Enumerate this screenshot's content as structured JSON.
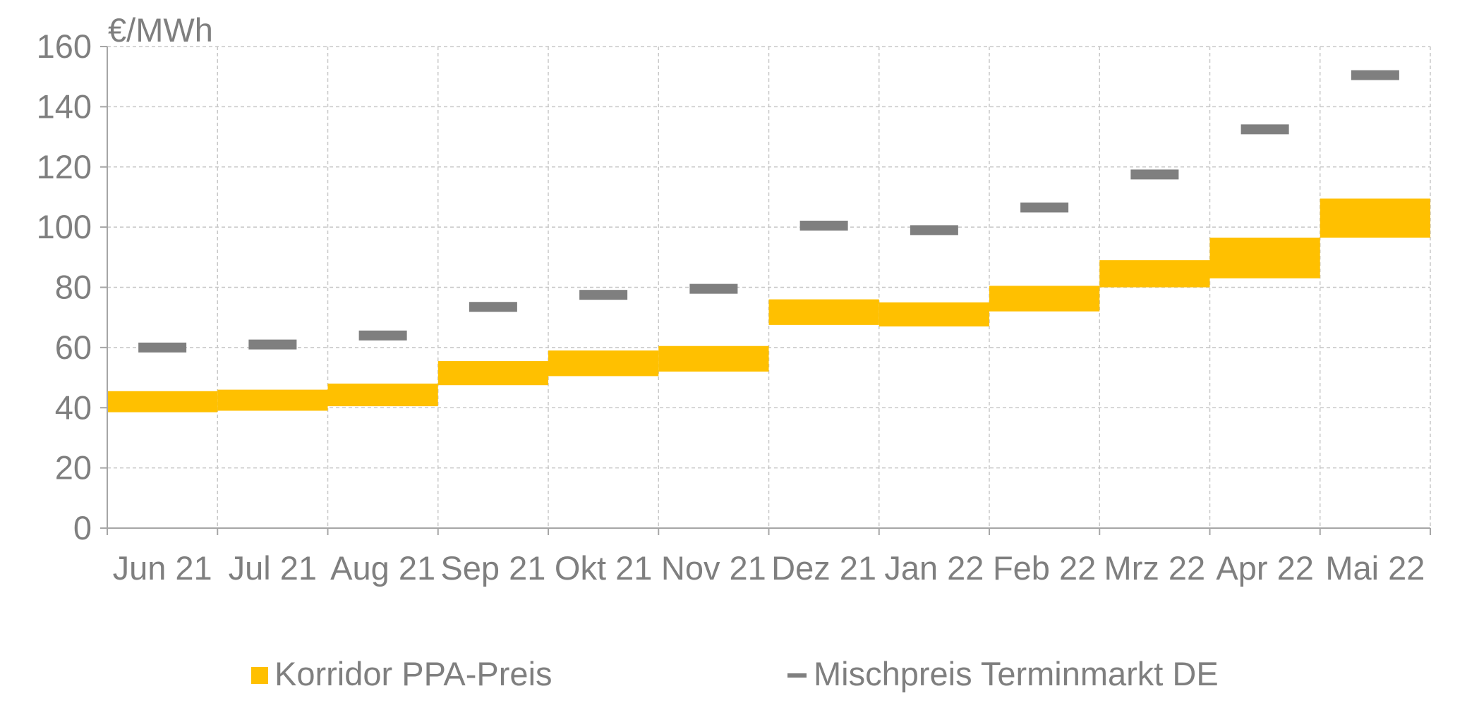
{
  "chart_data": {
    "type": "bar",
    "ylabel": "€/MWh",
    "ylim": [
      0,
      160
    ],
    "yticks": [
      "0",
      "20",
      "40",
      "60",
      "80",
      "100",
      "120",
      "140",
      "160"
    ],
    "grid": true,
    "legend_position": "bottom",
    "categories": [
      "Jun 21",
      "Jul 21",
      "Aug 21",
      "Sep 21",
      "Okt 21",
      "Nov 21",
      "Dez 21",
      "Jan 22",
      "Feb 22",
      "Mrz 22",
      "Apr 22",
      "Mai 22"
    ],
    "series": [
      {
        "name": "Korridor PPA-Preis",
        "type": "range",
        "color": "#ffc000",
        "low": [
          38.5,
          39,
          40.5,
          47.5,
          50.5,
          52,
          67.5,
          67,
          72,
          80,
          83,
          96.5
        ],
        "high": [
          45.5,
          46,
          48,
          55.5,
          59,
          60.5,
          76,
          75,
          80.5,
          89,
          96.5,
          109.5
        ]
      },
      {
        "name": "Mischpreis Terminmarkt DE",
        "type": "marker",
        "color": "#7f7f7f",
        "values": [
          60,
          61,
          64,
          73.5,
          77.5,
          79.5,
          100.5,
          99,
          106.5,
          117.5,
          132.5,
          150.5
        ]
      }
    ]
  }
}
